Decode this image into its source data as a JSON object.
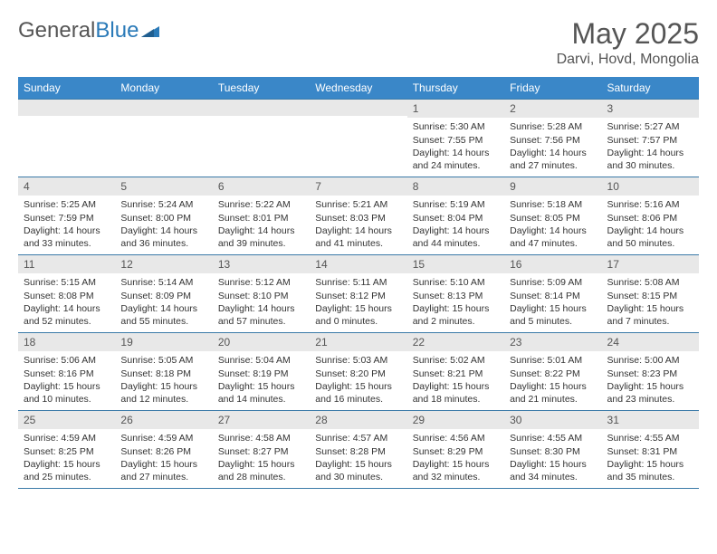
{
  "logo": {
    "text1": "General",
    "text2": "Blue"
  },
  "title": "May 2025",
  "location": "Darvi, Hovd, Mongolia",
  "colors": {
    "header_bg": "#3a87c8",
    "header_text": "#ffffff",
    "daybar_bg": "#e8e8e8",
    "border": "#3a7aa8",
    "title_color": "#555555",
    "body_text": "#333333",
    "logo_gray": "#555555",
    "logo_blue": "#2a7ab8"
  },
  "day_headers": [
    "Sunday",
    "Monday",
    "Tuesday",
    "Wednesday",
    "Thursday",
    "Friday",
    "Saturday"
  ],
  "weeks": [
    [
      {
        "n": "",
        "sr": "",
        "ss": "",
        "dl": ""
      },
      {
        "n": "",
        "sr": "",
        "ss": "",
        "dl": ""
      },
      {
        "n": "",
        "sr": "",
        "ss": "",
        "dl": ""
      },
      {
        "n": "",
        "sr": "",
        "ss": "",
        "dl": ""
      },
      {
        "n": "1",
        "sr": "Sunrise: 5:30 AM",
        "ss": "Sunset: 7:55 PM",
        "dl": "Daylight: 14 hours and 24 minutes."
      },
      {
        "n": "2",
        "sr": "Sunrise: 5:28 AM",
        "ss": "Sunset: 7:56 PM",
        "dl": "Daylight: 14 hours and 27 minutes."
      },
      {
        "n": "3",
        "sr": "Sunrise: 5:27 AM",
        "ss": "Sunset: 7:57 PM",
        "dl": "Daylight: 14 hours and 30 minutes."
      }
    ],
    [
      {
        "n": "4",
        "sr": "Sunrise: 5:25 AM",
        "ss": "Sunset: 7:59 PM",
        "dl": "Daylight: 14 hours and 33 minutes."
      },
      {
        "n": "5",
        "sr": "Sunrise: 5:24 AM",
        "ss": "Sunset: 8:00 PM",
        "dl": "Daylight: 14 hours and 36 minutes."
      },
      {
        "n": "6",
        "sr": "Sunrise: 5:22 AM",
        "ss": "Sunset: 8:01 PM",
        "dl": "Daylight: 14 hours and 39 minutes."
      },
      {
        "n": "7",
        "sr": "Sunrise: 5:21 AM",
        "ss": "Sunset: 8:03 PM",
        "dl": "Daylight: 14 hours and 41 minutes."
      },
      {
        "n": "8",
        "sr": "Sunrise: 5:19 AM",
        "ss": "Sunset: 8:04 PM",
        "dl": "Daylight: 14 hours and 44 minutes."
      },
      {
        "n": "9",
        "sr": "Sunrise: 5:18 AM",
        "ss": "Sunset: 8:05 PM",
        "dl": "Daylight: 14 hours and 47 minutes."
      },
      {
        "n": "10",
        "sr": "Sunrise: 5:16 AM",
        "ss": "Sunset: 8:06 PM",
        "dl": "Daylight: 14 hours and 50 minutes."
      }
    ],
    [
      {
        "n": "11",
        "sr": "Sunrise: 5:15 AM",
        "ss": "Sunset: 8:08 PM",
        "dl": "Daylight: 14 hours and 52 minutes."
      },
      {
        "n": "12",
        "sr": "Sunrise: 5:14 AM",
        "ss": "Sunset: 8:09 PM",
        "dl": "Daylight: 14 hours and 55 minutes."
      },
      {
        "n": "13",
        "sr": "Sunrise: 5:12 AM",
        "ss": "Sunset: 8:10 PM",
        "dl": "Daylight: 14 hours and 57 minutes."
      },
      {
        "n": "14",
        "sr": "Sunrise: 5:11 AM",
        "ss": "Sunset: 8:12 PM",
        "dl": "Daylight: 15 hours and 0 minutes."
      },
      {
        "n": "15",
        "sr": "Sunrise: 5:10 AM",
        "ss": "Sunset: 8:13 PM",
        "dl": "Daylight: 15 hours and 2 minutes."
      },
      {
        "n": "16",
        "sr": "Sunrise: 5:09 AM",
        "ss": "Sunset: 8:14 PM",
        "dl": "Daylight: 15 hours and 5 minutes."
      },
      {
        "n": "17",
        "sr": "Sunrise: 5:08 AM",
        "ss": "Sunset: 8:15 PM",
        "dl": "Daylight: 15 hours and 7 minutes."
      }
    ],
    [
      {
        "n": "18",
        "sr": "Sunrise: 5:06 AM",
        "ss": "Sunset: 8:16 PM",
        "dl": "Daylight: 15 hours and 10 minutes."
      },
      {
        "n": "19",
        "sr": "Sunrise: 5:05 AM",
        "ss": "Sunset: 8:18 PM",
        "dl": "Daylight: 15 hours and 12 minutes."
      },
      {
        "n": "20",
        "sr": "Sunrise: 5:04 AM",
        "ss": "Sunset: 8:19 PM",
        "dl": "Daylight: 15 hours and 14 minutes."
      },
      {
        "n": "21",
        "sr": "Sunrise: 5:03 AM",
        "ss": "Sunset: 8:20 PM",
        "dl": "Daylight: 15 hours and 16 minutes."
      },
      {
        "n": "22",
        "sr": "Sunrise: 5:02 AM",
        "ss": "Sunset: 8:21 PM",
        "dl": "Daylight: 15 hours and 18 minutes."
      },
      {
        "n": "23",
        "sr": "Sunrise: 5:01 AM",
        "ss": "Sunset: 8:22 PM",
        "dl": "Daylight: 15 hours and 21 minutes."
      },
      {
        "n": "24",
        "sr": "Sunrise: 5:00 AM",
        "ss": "Sunset: 8:23 PM",
        "dl": "Daylight: 15 hours and 23 minutes."
      }
    ],
    [
      {
        "n": "25",
        "sr": "Sunrise: 4:59 AM",
        "ss": "Sunset: 8:25 PM",
        "dl": "Daylight: 15 hours and 25 minutes."
      },
      {
        "n": "26",
        "sr": "Sunrise: 4:59 AM",
        "ss": "Sunset: 8:26 PM",
        "dl": "Daylight: 15 hours and 27 minutes."
      },
      {
        "n": "27",
        "sr": "Sunrise: 4:58 AM",
        "ss": "Sunset: 8:27 PM",
        "dl": "Daylight: 15 hours and 28 minutes."
      },
      {
        "n": "28",
        "sr": "Sunrise: 4:57 AM",
        "ss": "Sunset: 8:28 PM",
        "dl": "Daylight: 15 hours and 30 minutes."
      },
      {
        "n": "29",
        "sr": "Sunrise: 4:56 AM",
        "ss": "Sunset: 8:29 PM",
        "dl": "Daylight: 15 hours and 32 minutes."
      },
      {
        "n": "30",
        "sr": "Sunrise: 4:55 AM",
        "ss": "Sunset: 8:30 PM",
        "dl": "Daylight: 15 hours and 34 minutes."
      },
      {
        "n": "31",
        "sr": "Sunrise: 4:55 AM",
        "ss": "Sunset: 8:31 PM",
        "dl": "Daylight: 15 hours and 35 minutes."
      }
    ]
  ]
}
